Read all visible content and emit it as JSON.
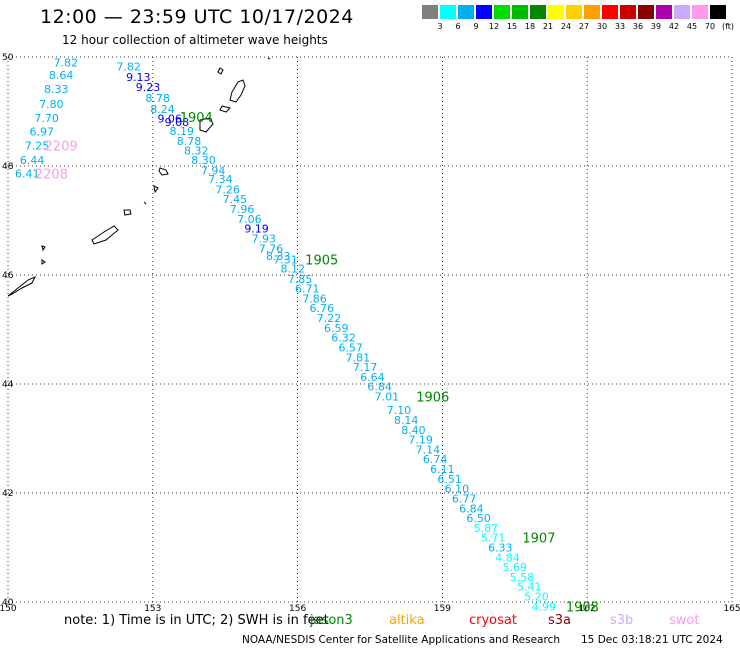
{
  "title": "12:00 — 23:59 UTC 10/17/2024",
  "subtitle": "12 hour collection of altimeter wave heights",
  "colorbar": {
    "unit": "(ft)",
    "colors": [
      "#808080",
      "#00ffff",
      "#00b0f0",
      "#0000ff",
      "#00dd00",
      "#00bb00",
      "#008800",
      "#ffff00",
      "#ffd000",
      "#ffa000",
      "#ff0000",
      "#cc0000",
      "#880000",
      "#aa00aa",
      "#ccaaff",
      "#ff99ee",
      "#000000"
    ],
    "labels": [
      "3",
      "6",
      "9",
      "12",
      "15",
      "18",
      "21",
      "24",
      "27",
      "30",
      "33",
      "36",
      "39",
      "42",
      "45",
      "70"
    ]
  },
  "axes": {
    "x_ticks": [
      "150",
      "153",
      "156",
      "159",
      "162",
      "165"
    ],
    "y_ticks": [
      "50",
      "48",
      "46",
      "44",
      "42",
      "40"
    ],
    "lon_range": [
      150,
      165
    ],
    "lat_range": [
      40,
      50
    ]
  },
  "readings": [
    {
      "v": "7.82",
      "c": "#00b0f0",
      "lat": 49.9,
      "lon": 151.2
    },
    {
      "v": "8.64",
      "c": "#00b0f0",
      "lat": 49.67,
      "lon": 151.1
    },
    {
      "v": "8.33",
      "c": "#00b0f0",
      "lat": 49.41,
      "lon": 151.0
    },
    {
      "v": "7.80",
      "c": "#00b0f0",
      "lat": 49.14,
      "lon": 150.9
    },
    {
      "v": "7.70",
      "c": "#00b0f0",
      "lat": 48.88,
      "lon": 150.8
    },
    {
      "v": "6.97",
      "c": "#00b0f0",
      "lat": 48.63,
      "lon": 150.7
    },
    {
      "v": "7.25",
      "c": "#00b0f0",
      "lat": 48.38,
      "lon": 150.6
    },
    {
      "v": "6.44",
      "c": "#00b0f0",
      "lat": 48.11,
      "lon": 150.5
    },
    {
      "v": "6.41",
      "c": "#00b0f0",
      "lat": 47.86,
      "lon": 150.4
    },
    {
      "v": "7.82",
      "c": "#00b0f0",
      "lat": 49.83,
      "lon": 152.5
    },
    {
      "v": "9.13",
      "c": "#0000ff",
      "lat": 49.63,
      "lon": 152.7
    },
    {
      "v": "9.23",
      "c": "#0000ff",
      "lat": 49.45,
      "lon": 152.9
    },
    {
      "v": "8.78",
      "c": "#00b0f0",
      "lat": 49.25,
      "lon": 153.1
    },
    {
      "v": "8.24",
      "c": "#00b0f0",
      "lat": 49.05,
      "lon": 153.2
    },
    {
      "v": "9.06",
      "c": "#0000ff",
      "lat": 48.87,
      "lon": 153.35
    },
    {
      "v": "9.08",
      "c": "#0000ff",
      "lat": 48.81,
      "lon": 153.5
    },
    {
      "v": "8.19",
      "c": "#00b0f0",
      "lat": 48.64,
      "lon": 153.6
    },
    {
      "v": "8.78",
      "c": "#00b0f0",
      "lat": 48.46,
      "lon": 153.75
    },
    {
      "v": "8.32",
      "c": "#00b0f0",
      "lat": 48.28,
      "lon": 153.9
    },
    {
      "v": "8.30",
      "c": "#00b0f0",
      "lat": 48.11,
      "lon": 154.05
    },
    {
      "v": "7.94",
      "c": "#00b0f0",
      "lat": 47.92,
      "lon": 154.25
    },
    {
      "v": "7.34",
      "c": "#00b0f0",
      "lat": 47.76,
      "lon": 154.4
    },
    {
      "v": "7.26",
      "c": "#00b0f0",
      "lat": 47.57,
      "lon": 154.55
    },
    {
      "v": "7.45",
      "c": "#00b0f0",
      "lat": 47.39,
      "lon": 154.7
    },
    {
      "v": "7.96",
      "c": "#00b0f0",
      "lat": 47.21,
      "lon": 154.85
    },
    {
      "v": "7.06",
      "c": "#00b0f0",
      "lat": 47.03,
      "lon": 155.0
    },
    {
      "v": "9.19",
      "c": "#0000ff",
      "lat": 46.85,
      "lon": 155.15
    },
    {
      "v": "7.93",
      "c": "#00b0f0",
      "lat": 46.67,
      "lon": 155.3
    },
    {
      "v": "7.76",
      "c": "#00b0f0",
      "lat": 46.49,
      "lon": 155.45
    },
    {
      "v": "8.33",
      "c": "#00b0f0",
      "lat": 46.35,
      "lon": 155.6
    },
    {
      "v": "7.31",
      "c": "#00b0f0",
      "lat": 46.28,
      "lon": 155.75
    },
    {
      "v": "8.12",
      "c": "#00b0f0",
      "lat": 46.12,
      "lon": 155.9
    },
    {
      "v": "7.85",
      "c": "#00b0f0",
      "lat": 45.93,
      "lon": 156.05
    },
    {
      "v": "6.71",
      "c": "#00b0f0",
      "lat": 45.75,
      "lon": 156.2
    },
    {
      "v": "7.86",
      "c": "#00b0f0",
      "lat": 45.57,
      "lon": 156.35
    },
    {
      "v": "6.76",
      "c": "#00b0f0",
      "lat": 45.39,
      "lon": 156.5
    },
    {
      "v": "7.22",
      "c": "#00b0f0",
      "lat": 45.21,
      "lon": 156.65
    },
    {
      "v": "6.59",
      "c": "#00b0f0",
      "lat": 45.03,
      "lon": 156.8
    },
    {
      "v": "6.32",
      "c": "#00b0f0",
      "lat": 44.85,
      "lon": 156.95
    },
    {
      "v": "6.57",
      "c": "#00b0f0",
      "lat": 44.67,
      "lon": 157.1
    },
    {
      "v": "7.81",
      "c": "#00b0f0",
      "lat": 44.49,
      "lon": 157.25
    },
    {
      "v": "7.17",
      "c": "#00b0f0",
      "lat": 44.31,
      "lon": 157.4
    },
    {
      "v": "6.64",
      "c": "#00b0f0",
      "lat": 44.13,
      "lon": 157.55
    },
    {
      "v": "6.84",
      "c": "#00b0f0",
      "lat": 43.95,
      "lon": 157.7
    },
    {
      "v": "7.01",
      "c": "#00b0f0",
      "lat": 43.77,
      "lon": 157.85
    },
    {
      "v": "7.10",
      "c": "#00b0f0",
      "lat": 43.52,
      "lon": 158.1
    },
    {
      "v": "8.14",
      "c": "#00b0f0",
      "lat": 43.34,
      "lon": 158.25
    },
    {
      "v": "8.40",
      "c": "#00b0f0",
      "lat": 43.16,
      "lon": 158.4
    },
    {
      "v": "7.19",
      "c": "#00b0f0",
      "lat": 42.98,
      "lon": 158.55
    },
    {
      "v": "7.14",
      "c": "#00b0f0",
      "lat": 42.8,
      "lon": 158.7
    },
    {
      "v": "6.74",
      "c": "#00b0f0",
      "lat": 42.62,
      "lon": 158.85
    },
    {
      "v": "6.11",
      "c": "#00b0f0",
      "lat": 42.44,
      "lon": 159.0
    },
    {
      "v": "6.51",
      "c": "#00b0f0",
      "lat": 42.26,
      "lon": 159.15
    },
    {
      "v": "6.10",
      "c": "#00b0f0",
      "lat": 42.08,
      "lon": 159.3
    },
    {
      "v": "6.77",
      "c": "#00b0f0",
      "lat": 41.9,
      "lon": 159.45
    },
    {
      "v": "6.84",
      "c": "#00b0f0",
      "lat": 41.72,
      "lon": 159.6
    },
    {
      "v": "6.50",
      "c": "#00b0f0",
      "lat": 41.54,
      "lon": 159.75
    },
    {
      "v": "5.87",
      "c": "#00ffff",
      "lat": 41.36,
      "lon": 159.9
    },
    {
      "v": "5.71",
      "c": "#00ffff",
      "lat": 41.18,
      "lon": 160.05
    },
    {
      "v": "6.33",
      "c": "#00b0f0",
      "lat": 41.0,
      "lon": 160.2
    },
    {
      "v": "4.84",
      "c": "#00ffff",
      "lat": 40.82,
      "lon": 160.35
    },
    {
      "v": "5.69",
      "c": "#00ffff",
      "lat": 40.64,
      "lon": 160.5
    },
    {
      "v": "5.58",
      "c": "#00ffff",
      "lat": 40.46,
      "lon": 160.65
    },
    {
      "v": "5.41",
      "c": "#00ffff",
      "lat": 40.28,
      "lon": 160.8
    },
    {
      "v": "5.20",
      "c": "#00ffff",
      "lat": 40.1,
      "lon": 160.95
    },
    {
      "v": "4.99",
      "c": "#00ffff",
      "lat": 39.92,
      "lon": 161.1
    }
  ],
  "time_labels": [
    {
      "t": "1904",
      "c": "#008800",
      "lat": 48.9,
      "lon": 153.9
    },
    {
      "t": "2209",
      "c": "#ff99ee",
      "lat": 48.38,
      "lon": 151.1
    },
    {
      "t": "2208",
      "c": "#ff99ee",
      "lat": 47.86,
      "lon": 150.9
    },
    {
      "t": "1905",
      "c": "#008800",
      "lat": 46.28,
      "lon": 156.5
    },
    {
      "t": "1906",
      "c": "#008800",
      "lat": 43.77,
      "lon": 158.8
    },
    {
      "t": "1907",
      "c": "#008800",
      "lat": 41.18,
      "lon": 161.0
    },
    {
      "t": "1908",
      "c": "#008800",
      "lat": 39.92,
      "lon": 161.9
    }
  ],
  "note": {
    "prefix": "note: 1) Time is in UTC; 2) SWH is in feet",
    "satellites": [
      {
        "name": "jason3",
        "c": "#008800"
      },
      {
        "name": "altika",
        "c": "#ffa000"
      },
      {
        "name": "cryosat",
        "c": "#ff0000"
      },
      {
        "name": "s3a",
        "c": "#880000"
      },
      {
        "name": "s3b",
        "c": "#ccaaff"
      },
      {
        "name": "swot",
        "c": "#ff99ee"
      }
    ]
  },
  "credit": "NOAA/NESDIS Center for Satellite Applications and Research",
  "timestamp": "15 Dec 03:18:21 UTC 2024"
}
